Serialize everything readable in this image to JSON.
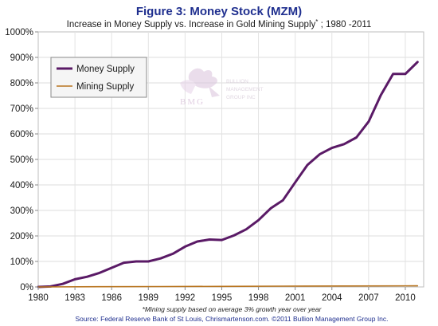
{
  "chart_data": {
    "type": "line",
    "title": "Figure 3: Money Stock (MZM)",
    "subtitle_main": "Increase in Money Supply vs. Increase in Gold Mining Supply",
    "subtitle_sup": "*",
    "subtitle_tail": " ; 1980 -2011",
    "x_ticks": [
      "1980",
      "1983",
      "1986",
      "1989",
      "1992",
      "1995",
      "1998",
      "2001",
      "2004",
      "2007",
      "2010"
    ],
    "y_ticks": [
      "0%",
      "100%",
      "200%",
      "300%",
      "400%",
      "500%",
      "600%",
      "700%",
      "800%",
      "900%",
      "1000%"
    ],
    "xlim": [
      1980,
      2011.5
    ],
    "ylim": [
      0,
      1000
    ],
    "grid": true,
    "legend_position": "top-left",
    "series": [
      {
        "name": "Money Supply",
        "color": "#5a1a66",
        "x": [
          1980,
          1981,
          1982,
          1983,
          1984,
          1985,
          1986,
          1987,
          1988,
          1989,
          1990,
          1991,
          1992,
          1993,
          1994,
          1995,
          1996,
          1997,
          1998,
          1999,
          2000,
          2001,
          2002,
          2003,
          2004,
          2005,
          2006,
          2007,
          2008,
          2009,
          2010,
          2011
        ],
        "values": [
          0,
          2,
          12,
          30,
          40,
          55,
          75,
          95,
          100,
          100,
          112,
          130,
          158,
          178,
          186,
          184,
          202,
          226,
          262,
          308,
          340,
          410,
          478,
          520,
          545,
          560,
          586,
          648,
          752,
          835,
          835,
          882
        ]
      },
      {
        "name": "Mining Supply",
        "color": "#b8741e",
        "x": [
          1980,
          1985,
          1990,
          1995,
          2000,
          2005,
          2011
        ],
        "values": [
          0,
          0.8,
          1.5,
          2.3,
          3,
          3.8,
          4.5
        ]
      }
    ],
    "footnote": "*Mining supply based on average 3% growth year over year",
    "source": "Source: Federal Reserve Bank of St Louis, Chrismartenson.com. ©2011 Bullion Management Group Inc.",
    "watermark": {
      "initials": "BMG",
      "line1": "BULLION",
      "line2": "MANAGEMENT",
      "line3": "GROUP INC"
    }
  }
}
